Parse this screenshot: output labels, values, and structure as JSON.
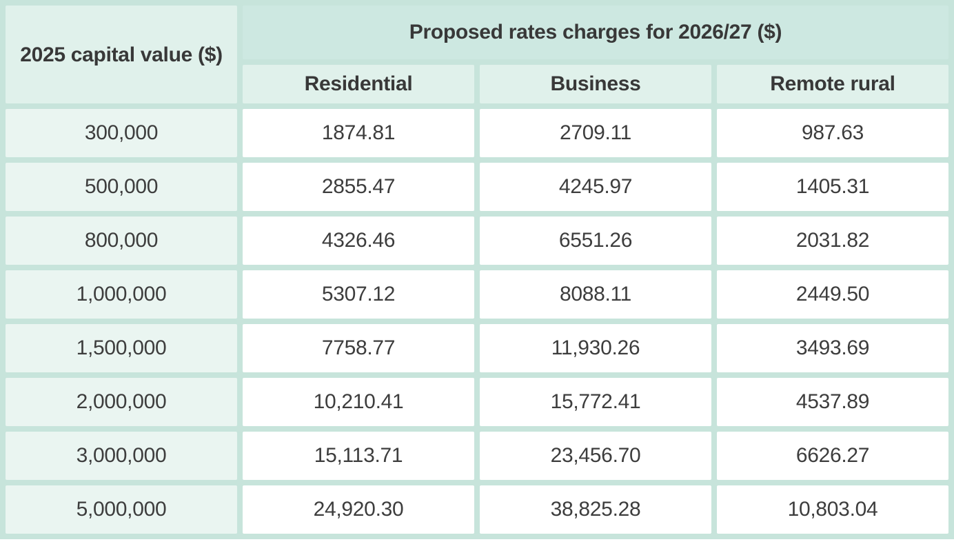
{
  "colors": {
    "border_mint": "#c7e4db",
    "group_header_bg": "#cde8e1",
    "subheader_bg": "#e0f1eb",
    "capital_column_bg": "#eaf5f1",
    "data_cell_bg": "#ffffff",
    "text": "#3d3d3d"
  },
  "chart_data": {
    "type": "table",
    "title": "Proposed rates charges for 2026/27 ($)",
    "row_header_label": "2025 capital value ($)",
    "columns": [
      "Residential",
      "Business",
      "Remote rural"
    ],
    "rows": [
      [
        "300,000",
        "1874.81",
        "2709.11",
        "987.63"
      ],
      [
        "500,000",
        "2855.47",
        "4245.97",
        "1405.31"
      ],
      [
        "800,000",
        "4326.46",
        "6551.26",
        "2031.82"
      ],
      [
        "1,000,000",
        "5307.12",
        "8088.11",
        "2449.50"
      ],
      [
        "1,500,000",
        "7758.77",
        "11,930.26",
        "3493.69"
      ],
      [
        "2,000,000",
        "10,210.41",
        "15,772.41",
        "4537.89"
      ],
      [
        "3,000,000",
        "15,113.71",
        "23,456.70",
        "6626.27"
      ],
      [
        "5,000,000",
        "24,920.30",
        "38,825.28",
        "10,803.04"
      ]
    ],
    "layout": {
      "grid": "separated cells with mint borders",
      "header_rows": 2,
      "corner_cell_rowspan": 2,
      "group_header_colspan": 3,
      "value_alignment": "center"
    }
  }
}
